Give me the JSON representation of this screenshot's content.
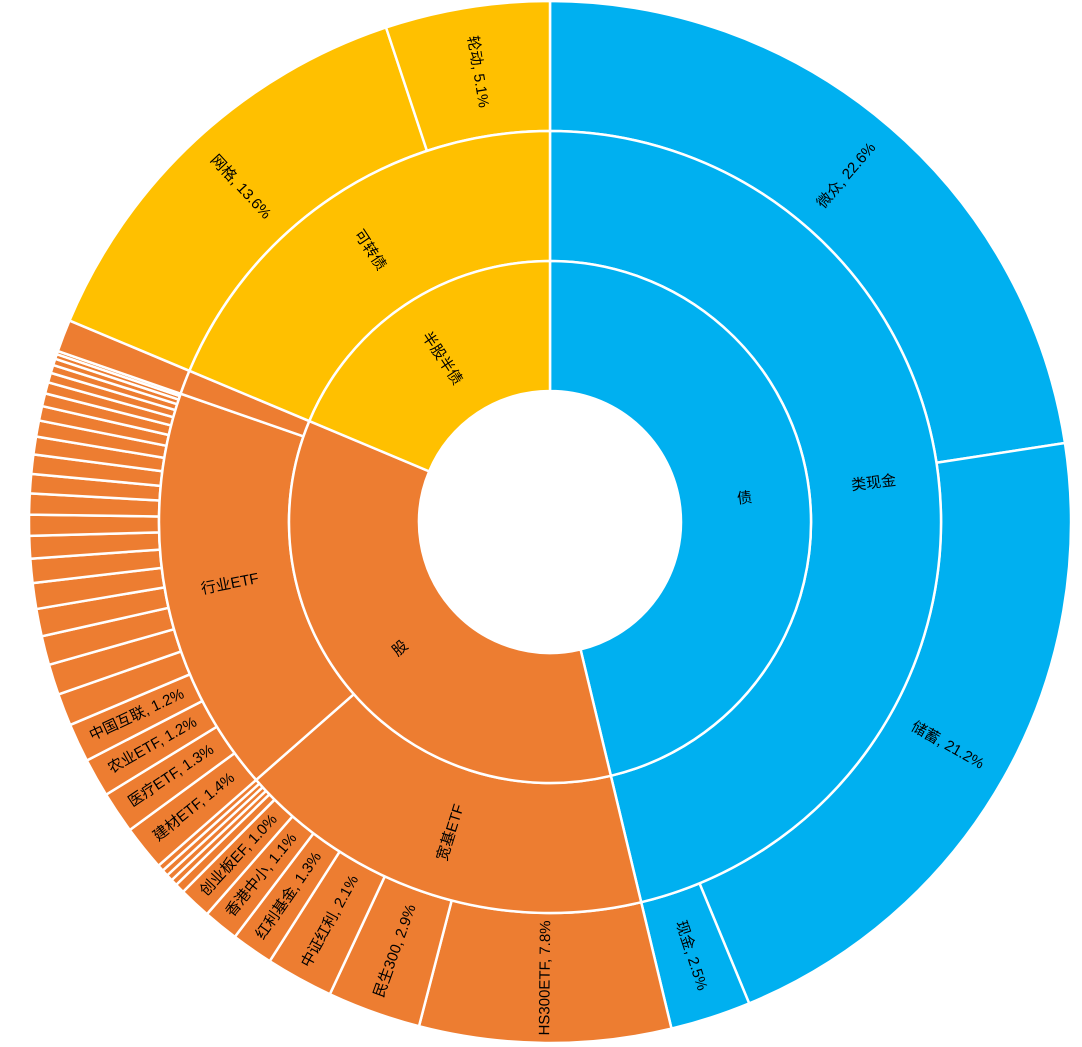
{
  "chart_data": {
    "type": "sunburst",
    "title": "",
    "colors": {
      "债": "#00B0F0",
      "股": "#ED7D31",
      "半股半债": "#FFC000",
      "separator": "#FFFFFF"
    },
    "hierarchy": [
      {
        "name": "债",
        "color": "#00B0F0",
        "children": [
          {
            "name": "类现金",
            "children": [
              {
                "name": "微众",
                "value": 22.6,
                "label": "微众, 22.6%"
              },
              {
                "name": "储蓄",
                "value": 21.2,
                "label": "储蓄, 21.2%"
              },
              {
                "name": "现金",
                "value": 2.5,
                "label": "现金, 2.5%"
              }
            ]
          }
        ]
      },
      {
        "name": "股",
        "color": "#ED7D31",
        "children": [
          {
            "name": "宽基ETF",
            "children": [
              {
                "name": "HS300ETF",
                "value": 7.8,
                "label": "HS300ETF, 7.8%"
              },
              {
                "name": "民生300",
                "value": 2.9,
                "label": "民生300, 2.9%"
              },
              {
                "name": "中证红利",
                "value": 2.1,
                "label": "中证红利, 2.1%"
              },
              {
                "name": "红利基金",
                "value": 1.3,
                "label": "红利基金, 1.3%"
              },
              {
                "name": "香港中小",
                "value": 1.1,
                "label": "香港中小, 1.1%"
              },
              {
                "name": "创业板EF",
                "value": 1.0,
                "label": "创业板EF, 1.0%"
              },
              {
                "name": "",
                "value": 0.3
              },
              {
                "name": "",
                "value": 0.2
              },
              {
                "name": "",
                "value": 0.2
              },
              {
                "name": "",
                "value": 0.2
              },
              {
                "name": "",
                "value": 0.2
              }
            ]
          },
          {
            "name": "行业ETF",
            "children": [
              {
                "name": "建材ETF",
                "value": 1.4,
                "label": "建材ETF, 1.4%"
              },
              {
                "name": "医疗ETF",
                "value": 1.3,
                "label": "医疗ETF, 1.3%"
              },
              {
                "name": "农业ETF",
                "value": 1.2,
                "label": "农业ETF, 1.2%"
              },
              {
                "name": "中国互联",
                "value": 1.2,
                "label": "中国互联, 1.2%"
              },
              {
                "name": "",
                "value": 1.0
              },
              {
                "name": "",
                "value": 0.95
              },
              {
                "name": "",
                "value": 0.9
              },
              {
                "name": "",
                "value": 0.85
              },
              {
                "name": "",
                "value": 0.8
              },
              {
                "name": "",
                "value": 0.75
              },
              {
                "name": "",
                "value": 0.7
              },
              {
                "name": "",
                "value": 0.65
              },
              {
                "name": "",
                "value": 0.65
              },
              {
                "name": "",
                "value": 0.6
              },
              {
                "name": "",
                "value": 0.6
              },
              {
                "name": "",
                "value": 0.55
              },
              {
                "name": "",
                "value": 0.5
              },
              {
                "name": "",
                "value": 0.45
              },
              {
                "name": "",
                "value": 0.4
              },
              {
                "name": "",
                "value": 0.35
              },
              {
                "name": "",
                "value": 0.3
              },
              {
                "name": "",
                "value": 0.25
              },
              {
                "name": "",
                "value": 0.2
              },
              {
                "name": "",
                "value": 0.15
              },
              {
                "name": "",
                "value": 0.1
              }
            ]
          },
          {
            "name": "",
            "children": [
              {
                "name": "",
                "value": 1.0
              }
            ]
          }
        ]
      },
      {
        "name": "半股半债",
        "color": "#FFC000",
        "children": [
          {
            "name": "可转债",
            "children": [
              {
                "name": "网格",
                "value": 13.6,
                "label": "网格, 13.6%"
              },
              {
                "name": "轮动",
                "value": 5.1,
                "label": "轮动, 5.1%"
              }
            ]
          }
        ]
      }
    ]
  }
}
